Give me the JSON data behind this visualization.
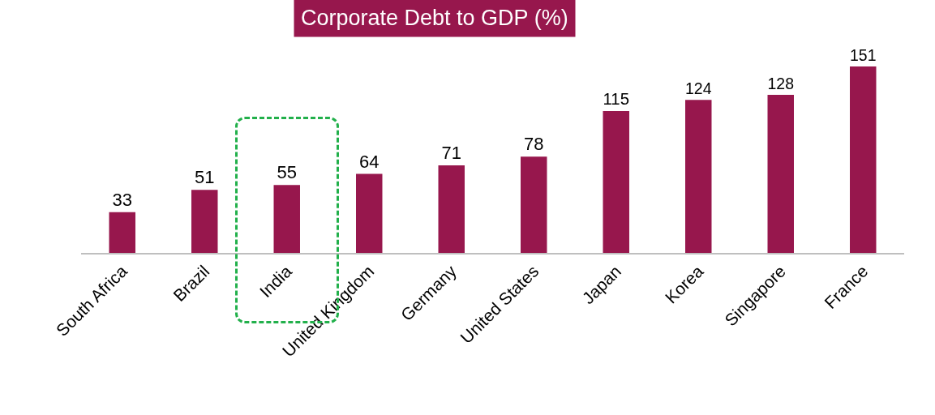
{
  "chart_data": {
    "type": "bar",
    "title": "Corporate Debt to GDP (%)",
    "categories": [
      "South Africa",
      "Brazil",
      "India",
      "United Kingdom",
      "Germany",
      "United States",
      "Japan",
      "Korea",
      "Singapore",
      "France"
    ],
    "values": [
      33,
      51,
      55,
      64,
      71,
      78,
      115,
      124,
      128,
      151
    ],
    "color": "#97174d",
    "data_labels": true,
    "grid": false,
    "legend": false,
    "tick_labels": "x"
  }
}
